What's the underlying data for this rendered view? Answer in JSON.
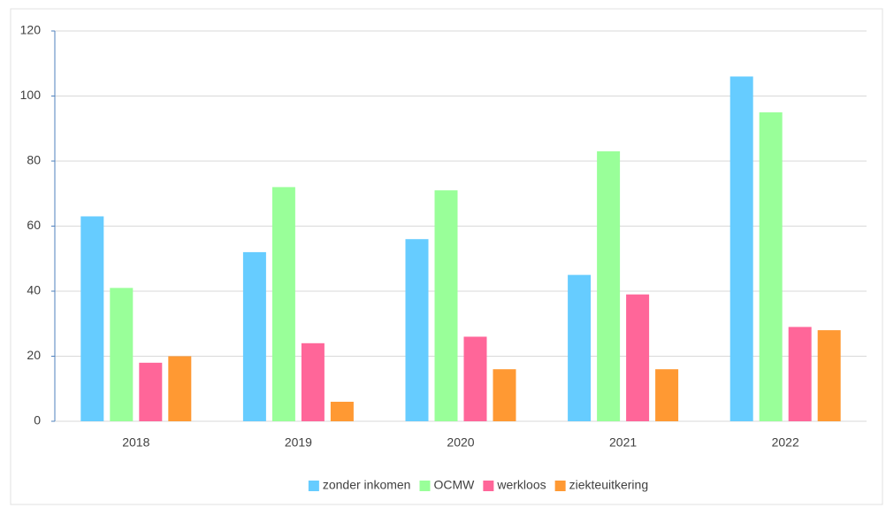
{
  "chart_data": {
    "type": "bar",
    "categories": [
      "2018",
      "2019",
      "2020",
      "2021",
      "2022"
    ],
    "series": [
      {
        "name": "zonder inkomen",
        "color": "#66ccff",
        "values": [
          63,
          52,
          56,
          45,
          106
        ]
      },
      {
        "name": "OCMW",
        "color": "#99ff99",
        "values": [
          41,
          72,
          71,
          83,
          95
        ]
      },
      {
        "name": "werkloos",
        "color": "#ff6699",
        "values": [
          18,
          24,
          26,
          39,
          29
        ]
      },
      {
        "name": "ziekteuitkering",
        "color": "#ff9933",
        "values": [
          20,
          6,
          16,
          16,
          28
        ]
      }
    ],
    "ylim": [
      0,
      120
    ],
    "yticks": [
      0,
      20,
      40,
      60,
      80,
      100,
      120
    ],
    "grid": true,
    "legend": "bottom"
  }
}
